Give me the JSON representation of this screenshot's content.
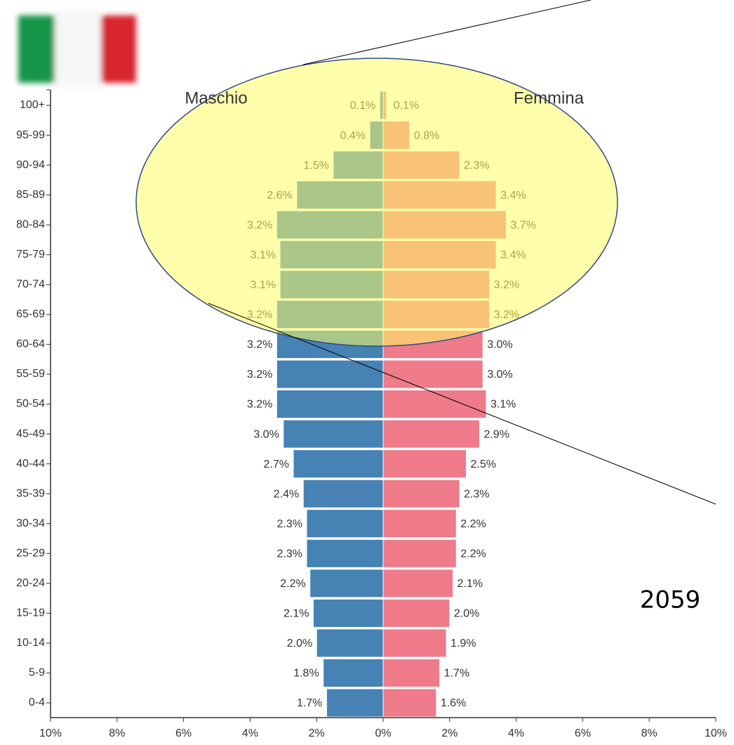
{
  "chart_data": {
    "type": "pyramid",
    "annotation": "2059",
    "categories": [
      "100+",
      "95-99",
      "90-94",
      "85-89",
      "80-84",
      "75-79",
      "70-74",
      "65-69",
      "60-64",
      "55-59",
      "50-54",
      "45-49",
      "40-44",
      "35-39",
      "30-34",
      "25-29",
      "20-24",
      "15-19",
      "10-14",
      "5-9",
      "0-4"
    ],
    "series": [
      {
        "name": "Maschio",
        "color": "#4682b4",
        "values": [
          0.1,
          0.4,
          1.5,
          2.6,
          3.2,
          3.1,
          3.1,
          3.2,
          3.2,
          3.2,
          3.2,
          3.0,
          2.7,
          2.4,
          2.3,
          2.3,
          2.2,
          2.1,
          2.0,
          1.8,
          1.7
        ],
        "value_labels": [
          "0.1%",
          "0.4%",
          "1.5%",
          "2.6%",
          "3.2%",
          "3.1%",
          "3.1%",
          "3.2%",
          "3.2%",
          "3.2%",
          "3.2%",
          "3.0%",
          "2.7%",
          "2.4%",
          "2.3%",
          "2.3%",
          "2.2%",
          "2.1%",
          "2.0%",
          "1.8%",
          "1.7%"
        ]
      },
      {
        "name": "Femmina",
        "color": "#ef7b8a",
        "values": [
          0.1,
          0.8,
          2.3,
          3.4,
          3.7,
          3.4,
          3.2,
          3.2,
          3.0,
          3.0,
          3.1,
          2.9,
          2.5,
          2.3,
          2.2,
          2.2,
          2.1,
          2.0,
          1.9,
          1.7,
          1.6
        ],
        "value_labels": [
          "0.1%",
          "0.8%",
          "2.3%",
          "3.4%",
          "3.7%",
          "3.4%",
          "3.2%",
          "3.2%",
          "3.0%",
          "3.0%",
          "3.1%",
          "2.9%",
          "2.5%",
          "2.3%",
          "2.2%",
          "2.2%",
          "2.1%",
          "2.0%",
          "1.9%",
          "1.7%",
          "1.6%"
        ]
      }
    ],
    "xlim": [
      -10,
      10
    ],
    "xticks": [
      {
        "value": -10,
        "label": "10%"
      },
      {
        "value": -8,
        "label": "8%"
      },
      {
        "value": -6,
        "label": "6%"
      },
      {
        "value": -4,
        "label": "4%"
      },
      {
        "value": -2,
        "label": "2%"
      },
      {
        "value": 0,
        "label": "0%"
      },
      {
        "value": 2,
        "label": "2%"
      },
      {
        "value": 4,
        "label": "4%"
      },
      {
        "value": 6,
        "label": "6%"
      },
      {
        "value": 8,
        "label": "8%"
      },
      {
        "value": 10,
        "label": "10%"
      }
    ]
  }
}
